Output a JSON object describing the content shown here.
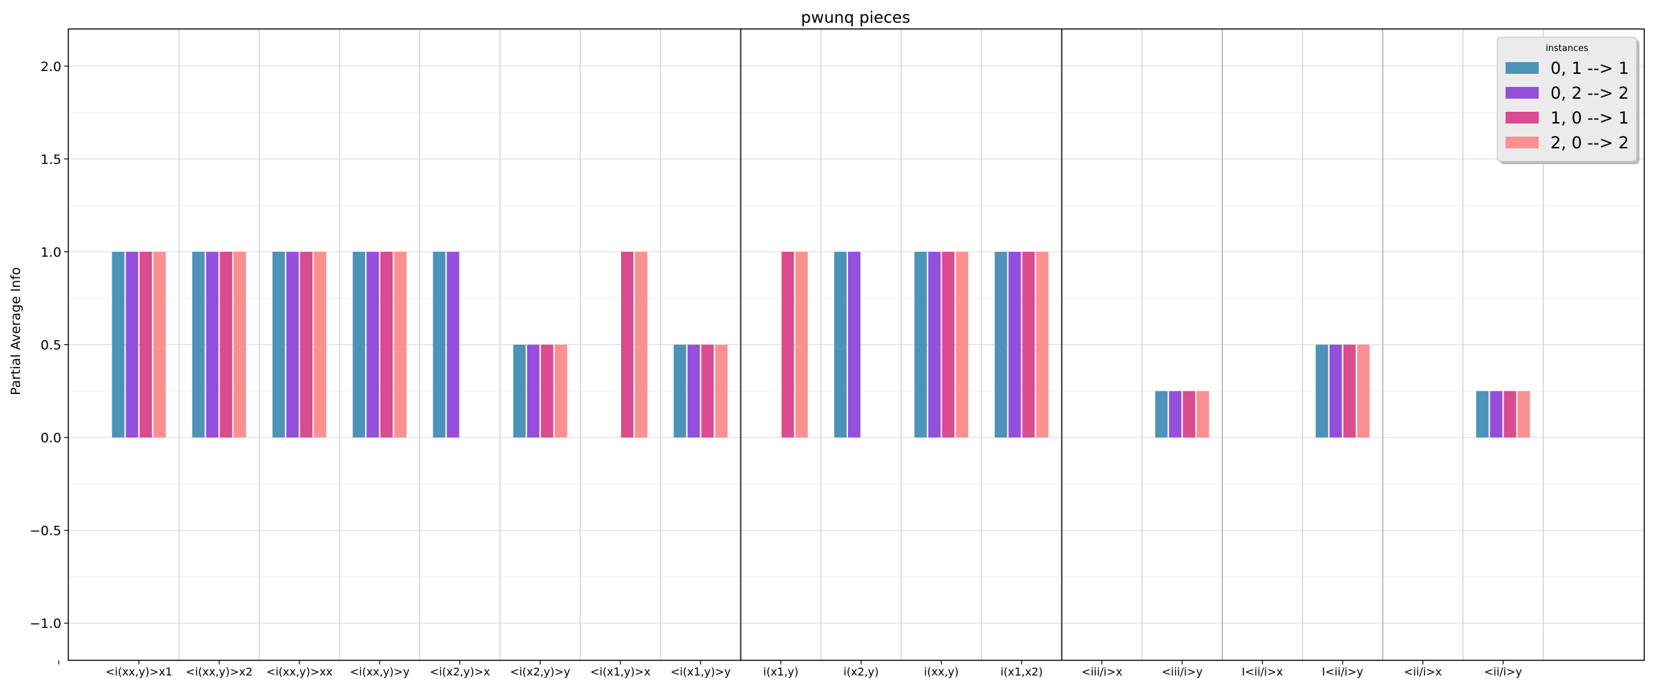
{
  "chart_data": {
    "type": "bar",
    "title": "pwunq pieces",
    "xlabel": "",
    "ylabel": "Partial Average Info",
    "ylim": [
      -1.2,
      2.2
    ],
    "yticks": [
      -1.0,
      -0.5,
      0.0,
      0.5,
      1.0,
      1.5,
      2.0
    ],
    "ytick_labels": [
      "−1.0",
      "−0.5",
      "0.0",
      "0.5",
      "1.0",
      "1.5",
      "2.0"
    ],
    "grid": true,
    "legend": {
      "title": "instances",
      "position": "top-right"
    },
    "categories": [
      "",
      "<i(xx,y)>x1",
      "<i(xx,y)>x2",
      "<i(xx,y)>xx",
      "<i(xx,y)>y",
      "<i(x2,y)>x",
      "<i(x2,y)>y",
      "<i(x1,y)>x",
      "<i(x1,y)>y",
      "i(x1,y)",
      "i(x2,y)",
      "i(xx,y)",
      "i(x1,x2)",
      "<iii/i>x",
      "<iii/i>y",
      "I<ii/i>x",
      "I<ii/i>y",
      "<ii/i>x",
      "<ii/i>y"
    ],
    "group_separators_after": [
      8,
      12
    ],
    "series": [
      {
        "name": "0, 1 --> 1",
        "color": "#4d92b8",
        "values": [
          0,
          1,
          1,
          1,
          1,
          1,
          0.5,
          0,
          0.5,
          0,
          1,
          1,
          1,
          0,
          0.25,
          0,
          0.5,
          0,
          0.25
        ]
      },
      {
        "name": "0, 2 --> 2",
        "color": "#944fdc",
        "values": [
          0,
          1,
          1,
          1,
          1,
          1,
          0.5,
          0,
          0.5,
          0,
          1,
          1,
          1,
          0,
          0.25,
          0,
          0.5,
          0,
          0.25
        ]
      },
      {
        "name": "1, 0 --> 1",
        "color": "#da4b8f",
        "values": [
          0,
          1,
          1,
          1,
          1,
          0,
          0.5,
          1,
          0.5,
          1,
          0,
          1,
          1,
          0,
          0.25,
          0,
          0.5,
          0,
          0.25
        ]
      },
      {
        "name": "2, 0 --> 2",
        "color": "#fb9091",
        "values": [
          0,
          1,
          1,
          1,
          1,
          0,
          0.5,
          1,
          0.5,
          1,
          0,
          1,
          1,
          0,
          0.25,
          0,
          0.5,
          0,
          0.25
        ]
      }
    ]
  }
}
